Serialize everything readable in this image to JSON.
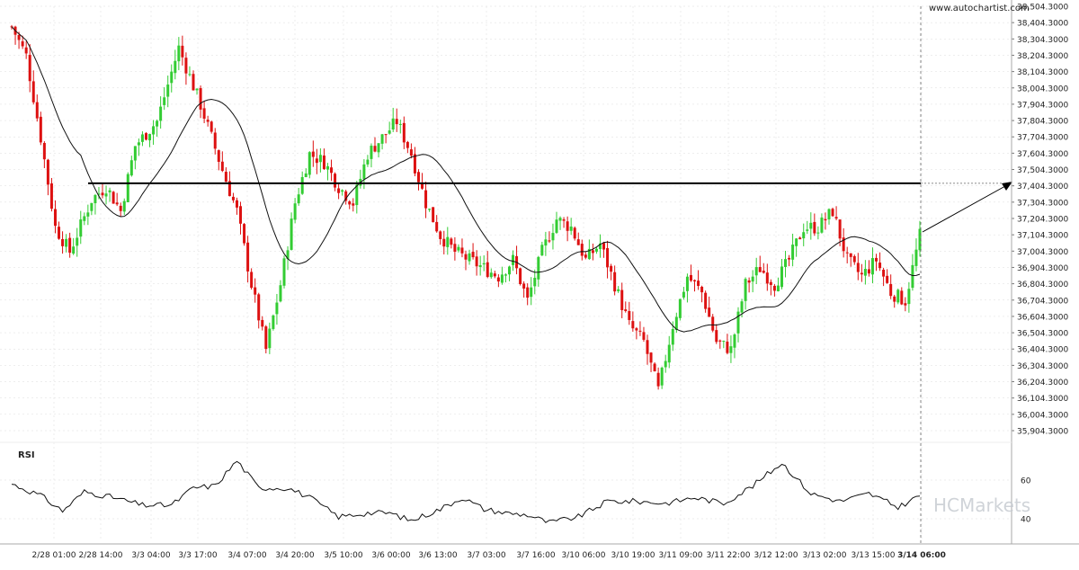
{
  "watermark_top": "www.autochartist.com",
  "watermark_brand": "HCMarkets",
  "rsi_label": "RSI",
  "colors": {
    "up": "#33cc33",
    "down": "#dd1111",
    "line": "#111111",
    "grid": "#dddddd",
    "text": "#222222"
  },
  "chart_data": {
    "type": "candlestick",
    "y_axis_labels": [
      "38,504.3000",
      "38,404.3000",
      "38,304.3000",
      "38,204.3000",
      "38,104.3000",
      "38,004.3000",
      "37,904.3000",
      "37,804.3000",
      "37,704.3000",
      "37,604.3000",
      "37,504.3000",
      "37,404.3000",
      "37,304.3000",
      "37,204.3000",
      "37,104.3000",
      "37,004.3000",
      "36,904.3000",
      "36,804.3000",
      "36,704.3000",
      "36,604.3000",
      "36,504.3000",
      "36,404.3000",
      "36,304.3000",
      "36,204.3000",
      "36,104.3000",
      "36,004.3000",
      "35,904.3000"
    ],
    "ylim": [
      35870,
      38520
    ],
    "x_labels": [
      "2/28 01:00",
      "2/28 14:00",
      "3/3 04:00",
      "3/3 17:00",
      "3/4 07:00",
      "3/4 20:00",
      "3/5 10:00",
      "3/6 00:00",
      "3/6 13:00",
      "3/7 03:00",
      "3/7 16:00",
      "3/10 06:00",
      "3/10 19:00",
      "3/11 09:00",
      "3/11 22:00",
      "3/12 12:00",
      "3/13 02:00",
      "3/13 15:00",
      "3/14 06:00"
    ],
    "x_highlight": "3/14 06:00",
    "level": 37420,
    "price_anchors": [
      [
        0,
        38380
      ],
      [
        4,
        38200
      ],
      [
        8,
        37700
      ],
      [
        12,
        37150
      ],
      [
        16,
        37000
      ],
      [
        22,
        37320
      ],
      [
        26,
        37400
      ],
      [
        30,
        37250
      ],
      [
        34,
        37650
      ],
      [
        40,
        37800
      ],
      [
        46,
        38250
      ],
      [
        52,
        37900
      ],
      [
        58,
        37500
      ],
      [
        62,
        37250
      ],
      [
        66,
        36800
      ],
      [
        70,
        36400
      ],
      [
        74,
        36800
      ],
      [
        78,
        37300
      ],
      [
        82,
        37600
      ],
      [
        86,
        37550
      ],
      [
        90,
        37400
      ],
      [
        94,
        37300
      ],
      [
        98,
        37600
      ],
      [
        102,
        37700
      ],
      [
        106,
        37800
      ],
      [
        110,
        37600
      ],
      [
        114,
        37300
      ],
      [
        118,
        37100
      ],
      [
        122,
        37000
      ],
      [
        126,
        36950
      ],
      [
        130,
        36900
      ],
      [
        134,
        36850
      ],
      [
        138,
        36950
      ],
      [
        142,
        36700
      ],
      [
        146,
        37000
      ],
      [
        150,
        37200
      ],
      [
        154,
        37150
      ],
      [
        158,
        36950
      ],
      [
        162,
        37050
      ],
      [
        166,
        36800
      ],
      [
        170,
        36550
      ],
      [
        174,
        36450
      ],
      [
        178,
        36150
      ],
      [
        182,
        36550
      ],
      [
        186,
        36850
      ],
      [
        190,
        36750
      ],
      [
        194,
        36450
      ],
      [
        198,
        36400
      ],
      [
        202,
        36800
      ],
      [
        206,
        36900
      ],
      [
        210,
        36800
      ],
      [
        214,
        36950
      ],
      [
        218,
        37150
      ],
      [
        222,
        37150
      ],
      [
        226,
        37250
      ],
      [
        230,
        36950
      ],
      [
        234,
        36850
      ],
      [
        238,
        36950
      ],
      [
        242,
        36750
      ],
      [
        246,
        36700
      ],
      [
        250,
        37100
      ]
    ],
    "rsi_anchors": [
      [
        0,
        58
      ],
      [
        8,
        52
      ],
      [
        14,
        44
      ],
      [
        20,
        54
      ],
      [
        28,
        51
      ],
      [
        36,
        47
      ],
      [
        44,
        47
      ],
      [
        50,
        56
      ],
      [
        56,
        57
      ],
      [
        62,
        70
      ],
      [
        68,
        56
      ],
      [
        76,
        56
      ],
      [
        82,
        51
      ],
      [
        90,
        41
      ],
      [
        98,
        43
      ],
      [
        104,
        43
      ],
      [
        110,
        39
      ],
      [
        118,
        45
      ],
      [
        124,
        51
      ],
      [
        130,
        45
      ],
      [
        136,
        43
      ],
      [
        142,
        42
      ],
      [
        148,
        38
      ],
      [
        156,
        41
      ],
      [
        164,
        49
      ],
      [
        172,
        49
      ],
      [
        180,
        48
      ],
      [
        188,
        51
      ],
      [
        196,
        48
      ],
      [
        204,
        57
      ],
      [
        212,
        69
      ],
      [
        220,
        53
      ],
      [
        228,
        49
      ],
      [
        236,
        53
      ],
      [
        244,
        46
      ],
      [
        250,
        52
      ]
    ],
    "rsi_levels": [
      60,
      40
    ]
  }
}
